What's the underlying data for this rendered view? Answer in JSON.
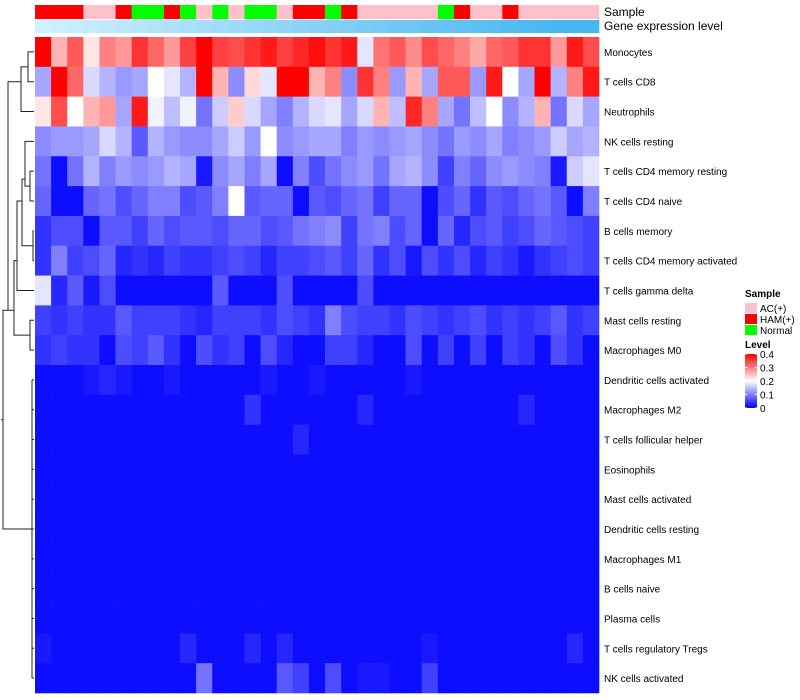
{
  "chart_data": {
    "type": "heatmap",
    "title": "",
    "annotation_tracks": [
      {
        "name": "Sample",
        "values": [
          "HAM(+)",
          "HAM(+)",
          "HAM(+)",
          "AC(+)",
          "AC(+)",
          "HAM(+)",
          "Normal",
          "Normal",
          "HAM(+)",
          "Normal",
          "AC(+)",
          "Normal",
          "AC(+)",
          "Normal",
          "Normal",
          "AC(+)",
          "HAM(+)",
          "HAM(+)",
          "Normal",
          "HAM(+)",
          "AC(+)",
          "AC(+)",
          "AC(+)",
          "AC(+)",
          "AC(+)",
          "Normal",
          "HAM(+)",
          "AC(+)",
          "AC(+)",
          "HAM(+)",
          "AC(+)",
          "AC(+)",
          "AC(+)",
          "AC(+)",
          "AC(+)"
        ]
      },
      {
        "name": "Gene expression level",
        "values": [
          0.05,
          0.08,
          0.11,
          0.14,
          0.17,
          0.2,
          0.23,
          0.26,
          0.29,
          0.32,
          0.35,
          0.38,
          0.41,
          0.44,
          0.47,
          0.5,
          0.53,
          0.56,
          0.59,
          0.62,
          0.65,
          0.68,
          0.71,
          0.74,
          0.77,
          0.8,
          0.83,
          0.86,
          0.89,
          0.92,
          0.95,
          0.98,
          1.0,
          1.0,
          1.0
        ]
      }
    ],
    "rows": [
      "Monocytes",
      "T cells CD8",
      "Neutrophils",
      "NK cells resting",
      "T cells CD4 memory resting",
      "T cells CD4 naive",
      "B cells memory",
      "T cells CD4 memory activated",
      "T cells gamma delta",
      "Mast cells resting",
      "Macrophages M0",
      "Dendritic cells activated",
      "Macrophages M2",
      "T cells follicular helper",
      "Eosinophils",
      "Mast cells activated",
      "Dendritic cells resting",
      "Macrophages M1",
      "B cells naive",
      "Plasma cells",
      "T cells regulatory  Tregs",
      "NK cells activated"
    ],
    "values": [
      [
        0.4,
        0.26,
        0.33,
        0.22,
        0.3,
        0.28,
        0.36,
        0.32,
        0.28,
        0.35,
        0.4,
        0.35,
        0.34,
        0.36,
        0.38,
        0.35,
        0.37,
        0.39,
        0.36,
        0.38,
        0.18,
        0.31,
        0.33,
        0.29,
        0.34,
        0.32,
        0.3,
        0.27,
        0.32,
        0.33,
        0.36,
        0.36,
        0.28,
        0.38,
        0.34
      ],
      [
        0.13,
        0.4,
        0.32,
        0.17,
        0.14,
        0.12,
        0.13,
        0.2,
        0.18,
        0.14,
        0.4,
        0.26,
        0.11,
        0.23,
        0.18,
        0.4,
        0.4,
        0.26,
        0.3,
        0.11,
        0.36,
        0.3,
        0.12,
        0.26,
        0.13,
        0.33,
        0.33,
        0.12,
        0.38,
        0.2,
        0.13,
        0.4,
        0.14,
        0.3,
        0.38
      ],
      [
        0.22,
        0.34,
        0.2,
        0.26,
        0.28,
        0.13,
        0.38,
        0.19,
        0.15,
        0.19,
        0.09,
        0.16,
        0.24,
        0.17,
        0.13,
        0.1,
        0.14,
        0.17,
        0.18,
        0.13,
        0.17,
        0.26,
        0.15,
        0.37,
        0.3,
        0.13,
        0.09,
        0.15,
        0.2,
        0.11,
        0.14,
        0.26,
        0.09,
        0.17,
        0.13
      ],
      [
        0.11,
        0.12,
        0.12,
        0.13,
        0.17,
        0.14,
        0.07,
        0.14,
        0.12,
        0.11,
        0.11,
        0.13,
        0.16,
        0.12,
        0.2,
        0.11,
        0.12,
        0.13,
        0.13,
        0.1,
        0.12,
        0.11,
        0.12,
        0.13,
        0.11,
        0.09,
        0.12,
        0.11,
        0.13,
        0.1,
        0.11,
        0.12,
        0.16,
        0.13,
        0.14
      ],
      [
        0.09,
        0.01,
        0.09,
        0.14,
        0.1,
        0.12,
        0.11,
        0.12,
        0.14,
        0.13,
        0.02,
        0.11,
        0.13,
        0.1,
        0.13,
        0.01,
        0.1,
        0.06,
        0.09,
        0.11,
        0.12,
        0.09,
        0.13,
        0.14,
        0.11,
        0.05,
        0.1,
        0.08,
        0.11,
        0.12,
        0.11,
        0.1,
        0.02,
        0.16,
        0.18
      ],
      [
        0.08,
        0.01,
        0.01,
        0.08,
        0.09,
        0.06,
        0.08,
        0.1,
        0.1,
        0.06,
        0.07,
        0.1,
        0.2,
        0.07,
        0.08,
        0.08,
        0.01,
        0.07,
        0.06,
        0.08,
        0.09,
        0.05,
        0.08,
        0.08,
        0.01,
        0.06,
        0.08,
        0.04,
        0.07,
        0.06,
        0.08,
        0.09,
        0.07,
        0.01,
        0.1
      ],
      [
        0.04,
        0.06,
        0.06,
        0.01,
        0.07,
        0.07,
        0.05,
        0.08,
        0.06,
        0.07,
        0.07,
        0.06,
        0.08,
        0.08,
        0.06,
        0.07,
        0.09,
        0.1,
        0.11,
        0.05,
        0.09,
        0.1,
        0.06,
        0.08,
        0.01,
        0.08,
        0.03,
        0.06,
        0.07,
        0.05,
        0.06,
        0.08,
        0.07,
        0.06,
        0.05
      ],
      [
        0.04,
        0.1,
        0.05,
        0.06,
        0.08,
        0.03,
        0.04,
        0.03,
        0.05,
        0.04,
        0.04,
        0.05,
        0.06,
        0.05,
        0.03,
        0.05,
        0.05,
        0.06,
        0.07,
        0.05,
        0.08,
        0.04,
        0.06,
        0.02,
        0.06,
        0.04,
        0.06,
        0.03,
        0.05,
        0.04,
        0.02,
        0.04,
        0.05,
        0.06,
        0.05
      ],
      [
        0.18,
        0.03,
        0.07,
        0.02,
        0.06,
        0.01,
        0.01,
        0.01,
        0.01,
        0.01,
        0.01,
        0.07,
        0.01,
        0.01,
        0.01,
        0.06,
        0.01,
        0.01,
        0.01,
        0.01,
        0.06,
        0.01,
        0.01,
        0.01,
        0.01,
        0.01,
        0.01,
        0.01,
        0.01,
        0.01,
        0.01,
        0.01,
        0.01,
        0.01,
        0.01
      ],
      [
        0.05,
        0.04,
        0.05,
        0.04,
        0.04,
        0.07,
        0.05,
        0.05,
        0.05,
        0.04,
        0.03,
        0.05,
        0.05,
        0.05,
        0.04,
        0.06,
        0.05,
        0.04,
        0.1,
        0.06,
        0.05,
        0.05,
        0.04,
        0.06,
        0.05,
        0.04,
        0.05,
        0.06,
        0.04,
        0.05,
        0.04,
        0.05,
        0.07,
        0.04,
        0.05
      ],
      [
        0.04,
        0.05,
        0.04,
        0.04,
        0.01,
        0.06,
        0.05,
        0.07,
        0.04,
        0.01,
        0.06,
        0.04,
        0.05,
        0.01,
        0.06,
        0.03,
        0.01,
        0.01,
        0.05,
        0.05,
        0.03,
        0.01,
        0.01,
        0.06,
        0.01,
        0.05,
        0.01,
        0.05,
        0.01,
        0.05,
        0.04,
        0.01,
        0.06,
        0.04,
        0.01
      ],
      [
        0.01,
        0.01,
        0.01,
        0.02,
        0.03,
        0.02,
        0.01,
        0.01,
        0.02,
        0.01,
        0.01,
        0.01,
        0.01,
        0.01,
        0.02,
        0.01,
        0.01,
        0.02,
        0.01,
        0.01,
        0.01,
        0.01,
        0.01,
        0.02,
        0.01,
        0.01,
        0.01,
        0.01,
        0.01,
        0.01,
        0.01,
        0.01,
        0.01,
        0.01,
        0.01
      ],
      [
        0.01,
        0.01,
        0.01,
        0.01,
        0.01,
        0.01,
        0.01,
        0.01,
        0.01,
        0.01,
        0.01,
        0.01,
        0.01,
        0.04,
        0.01,
        0.01,
        0.01,
        0.01,
        0.01,
        0.01,
        0.03,
        0.01,
        0.01,
        0.01,
        0.01,
        0.01,
        0.01,
        0.01,
        0.01,
        0.01,
        0.03,
        0.01,
        0.01,
        0.01,
        0.01
      ],
      [
        0.01,
        0.01,
        0.01,
        0.01,
        0.01,
        0.01,
        0.01,
        0.01,
        0.01,
        0.01,
        0.01,
        0.01,
        0.01,
        0.01,
        0.01,
        0.01,
        0.03,
        0.01,
        0.01,
        0.01,
        0.01,
        0.01,
        0.01,
        0.01,
        0.01,
        0.01,
        0.01,
        0.01,
        0.01,
        0.01,
        0.01,
        0.01,
        0.01,
        0.01,
        0.01
      ],
      [
        0.01,
        0.01,
        0.01,
        0.01,
        0.01,
        0.01,
        0.01,
        0.01,
        0.01,
        0.01,
        0.01,
        0.01,
        0.01,
        0.01,
        0.01,
        0.01,
        0.01,
        0.01,
        0.01,
        0.01,
        0.01,
        0.01,
        0.01,
        0.01,
        0.01,
        0.01,
        0.01,
        0.01,
        0.01,
        0.01,
        0.01,
        0.01,
        0.01,
        0.01,
        0.01
      ],
      [
        0.01,
        0.01,
        0.01,
        0.01,
        0.01,
        0.01,
        0.01,
        0.01,
        0.01,
        0.01,
        0.01,
        0.01,
        0.01,
        0.01,
        0.01,
        0.01,
        0.01,
        0.01,
        0.01,
        0.01,
        0.01,
        0.01,
        0.01,
        0.01,
        0.01,
        0.01,
        0.01,
        0.01,
        0.01,
        0.01,
        0.01,
        0.01,
        0.01,
        0.01,
        0.01
      ],
      [
        0.01,
        0.01,
        0.01,
        0.01,
        0.01,
        0.01,
        0.01,
        0.01,
        0.01,
        0.01,
        0.01,
        0.01,
        0.01,
        0.01,
        0.01,
        0.01,
        0.01,
        0.01,
        0.01,
        0.01,
        0.01,
        0.01,
        0.01,
        0.01,
        0.01,
        0.01,
        0.01,
        0.01,
        0.01,
        0.01,
        0.01,
        0.01,
        0.01,
        0.01,
        0.01
      ],
      [
        0.01,
        0.01,
        0.01,
        0.01,
        0.01,
        0.01,
        0.01,
        0.01,
        0.01,
        0.01,
        0.01,
        0.01,
        0.01,
        0.01,
        0.01,
        0.01,
        0.01,
        0.01,
        0.01,
        0.01,
        0.01,
        0.01,
        0.01,
        0.01,
        0.01,
        0.01,
        0.01,
        0.01,
        0.01,
        0.01,
        0.01,
        0.01,
        0.01,
        0.01,
        0.01
      ],
      [
        0.01,
        0.01,
        0.01,
        0.01,
        0.01,
        0.01,
        0.01,
        0.01,
        0.01,
        0.01,
        0.01,
        0.01,
        0.01,
        0.01,
        0.01,
        0.01,
        0.01,
        0.01,
        0.01,
        0.01,
        0.01,
        0.01,
        0.01,
        0.01,
        0.01,
        0.01,
        0.01,
        0.01,
        0.01,
        0.01,
        0.01,
        0.01,
        0.01,
        0.01,
        0.01
      ],
      [
        0.01,
        0.01,
        0.01,
        0.01,
        0.01,
        0.01,
        0.01,
        0.01,
        0.01,
        0.01,
        0.01,
        0.01,
        0.01,
        0.01,
        0.01,
        0.01,
        0.01,
        0.01,
        0.01,
        0.01,
        0.01,
        0.01,
        0.01,
        0.01,
        0.01,
        0.01,
        0.01,
        0.01,
        0.01,
        0.01,
        0.01,
        0.01,
        0.01,
        0.01,
        0.01
      ],
      [
        0.02,
        0.01,
        0.01,
        0.01,
        0.01,
        0.01,
        0.01,
        0.01,
        0.01,
        0.03,
        0.01,
        0.01,
        0.01,
        0.03,
        0.01,
        0.03,
        0.01,
        0.01,
        0.01,
        0.01,
        0.01,
        0.01,
        0.01,
        0.01,
        0.02,
        0.01,
        0.01,
        0.01,
        0.01,
        0.01,
        0.01,
        0.01,
        0.01,
        0.03,
        0.01
      ],
      [
        0.01,
        0.01,
        0.01,
        0.01,
        0.01,
        0.01,
        0.01,
        0.01,
        0.01,
        0.01,
        0.09,
        0.01,
        0.01,
        0.01,
        0.01,
        0.07,
        0.05,
        0.01,
        0.06,
        0.01,
        0.02,
        0.02,
        0.01,
        0.01,
        0.05,
        0.01,
        0.01,
        0.01,
        0.01,
        0.01,
        0.01,
        0.01,
        0.01,
        0.01,
        0.01
      ]
    ],
    "value_range": [
      0,
      0.4
    ],
    "legend": {
      "position": "right",
      "sample_title": "Sample",
      "sample_entries": [
        {
          "label": "AC(+)",
          "color": "#FFC0CB"
        },
        {
          "label": "HAM(+)",
          "color": "#FF0000"
        },
        {
          "label": "Normal",
          "color": "#00FF00"
        }
      ],
      "level_title": "Level",
      "level_ticks": [
        "0.4",
        "0.3",
        "0.2",
        "0.1",
        "0"
      ]
    }
  },
  "colors": {
    "low": "#0000FF",
    "mid": "#FFFFFF",
    "high": "#FF0000",
    "expr_light": "#D8F4FF",
    "expr_dark": "#48B6F0"
  }
}
